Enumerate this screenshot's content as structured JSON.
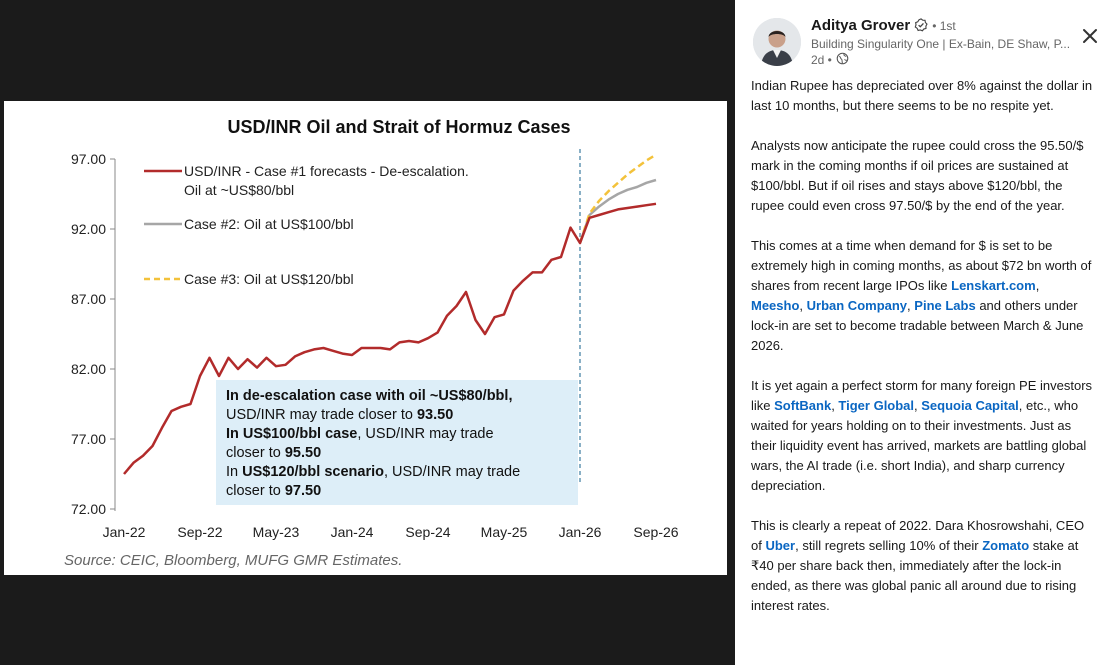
{
  "chart_data": {
    "type": "line",
    "title": "USD/INR Oil and Strait of Hormuz Cases",
    "source": "Source: CEIC, Bloomberg, MUFG GMR Estimates.",
    "x_tick_labels": [
      "Jan-22",
      "Sep-22",
      "May-23",
      "Jan-24",
      "Sep-24",
      "May-25",
      "Jan-26",
      "Sep-26"
    ],
    "y_tick_labels": [
      "97.00",
      "92.00",
      "87.00",
      "82.00",
      "77.00",
      "72.00"
    ],
    "ylim": [
      72,
      97
    ],
    "xlim": [
      0,
      56
    ],
    "forecast_start_x": 48,
    "legend": [
      {
        "label_line1": "USD/INR - Case #1 forecasts - De-escalation.",
        "label_line2": "Oil at ~US$80/bbl",
        "color": "#b22b2b",
        "style": "solid"
      },
      {
        "label_line1": "Case #2: Oil at US$100/bbl",
        "label_line2": "",
        "color": "#a6a6a6",
        "style": "solid"
      },
      {
        "label_line1": "Case #3: Oil at US$120/bbl",
        "label_line2": "",
        "color": "#f3c23b",
        "style": "dashed"
      }
    ],
    "annotation": {
      "line1": "In de-escalation case with oil ~US$80/bbl,",
      "line2_pre": "USD/INR may trade closer to ",
      "line2_val": "93.50",
      "line3_bold": "In US$100/bbl case",
      "line3_rest": ", USD/INR may trade",
      "line4_pre": "closer to ",
      "line4_val": "95.50",
      "line5_pre": "In ",
      "line5_bold": "US$120/bbl scenario",
      "line5_rest": ", USD/INR may trade",
      "line6_pre": "closer to ",
      "line6_val": "97.50"
    },
    "series": [
      {
        "name": "USD/INR - Case #1 forecasts - De-escalation. Oil at ~US$80/bbl",
        "color": "#b22b2b",
        "points": [
          [
            0,
            74.5
          ],
          [
            1,
            75.3
          ],
          [
            2,
            75.8
          ],
          [
            3,
            76.5
          ],
          [
            4,
            77.8
          ],
          [
            5,
            79.0
          ],
          [
            6,
            79.3
          ],
          [
            7,
            79.5
          ],
          [
            8,
            81.5
          ],
          [
            9,
            82.8
          ],
          [
            10,
            81.5
          ],
          [
            11,
            82.8
          ],
          [
            12,
            82.0
          ],
          [
            13,
            82.7
          ],
          [
            14,
            82.1
          ],
          [
            15,
            82.8
          ],
          [
            16,
            82.2
          ],
          [
            17,
            82.3
          ],
          [
            18,
            82.9
          ],
          [
            19,
            83.2
          ],
          [
            20,
            83.4
          ],
          [
            21,
            83.5
          ],
          [
            22,
            83.3
          ],
          [
            23,
            83.1
          ],
          [
            24,
            83.0
          ],
          [
            25,
            83.5
          ],
          [
            26,
            83.5
          ],
          [
            27,
            83.5
          ],
          [
            28,
            83.4
          ],
          [
            29,
            83.9
          ],
          [
            30,
            84.0
          ],
          [
            31,
            83.9
          ],
          [
            32,
            84.2
          ],
          [
            33,
            84.6
          ],
          [
            34,
            85.8
          ],
          [
            35,
            86.5
          ],
          [
            36,
            87.5
          ],
          [
            37,
            85.5
          ],
          [
            38,
            84.5
          ],
          [
            39,
            85.7
          ],
          [
            40,
            85.9
          ],
          [
            41,
            87.6
          ],
          [
            42,
            88.3
          ],
          [
            43,
            88.9
          ],
          [
            44,
            88.9
          ],
          [
            45,
            89.8
          ],
          [
            46,
            90.0
          ],
          [
            47,
            92.1
          ],
          [
            48,
            91.0
          ],
          [
            49,
            92.8
          ],
          [
            50,
            93.0
          ],
          [
            51,
            93.2
          ],
          [
            52,
            93.4
          ],
          [
            53,
            93.5
          ],
          [
            54,
            93.6
          ],
          [
            55,
            93.7
          ],
          [
            56,
            93.8
          ]
        ]
      },
      {
        "name": "Case #2: Oil at US$100/bbl",
        "color": "#a6a6a6",
        "points": [
          [
            48,
            91.0
          ],
          [
            49,
            93.0
          ],
          [
            50,
            93.6
          ],
          [
            51,
            94.1
          ],
          [
            52,
            94.5
          ],
          [
            53,
            94.8
          ],
          [
            54,
            95.0
          ],
          [
            55,
            95.3
          ],
          [
            56,
            95.5
          ]
        ]
      },
      {
        "name": "Case #3: Oil at US$120/bbl",
        "color": "#f3c23b",
        "points": [
          [
            48,
            91.0
          ],
          [
            49,
            93.1
          ],
          [
            50,
            94.0
          ],
          [
            51,
            94.7
          ],
          [
            52,
            95.3
          ],
          [
            53,
            95.9
          ],
          [
            54,
            96.4
          ],
          [
            55,
            96.9
          ],
          [
            56,
            97.3
          ]
        ]
      }
    ]
  },
  "author": {
    "name": "Aditya Grover",
    "degree": "• 1st",
    "headline": "Building Singularity One | Ex-Bain, DE Shaw, P...",
    "age": "2d •"
  },
  "post": {
    "p1": "Indian Rupee has depreciated over 8% against the dollar in last 10 months, but there seems to be no respite yet.",
    "p2": "Analysts now anticipate the rupee could cross the 95.50/$ mark in the coming months if oil prices are sustained at $100/bbl. But if oil rises and stays above $120/bbl, the rupee could even cross 97.50/$ by the end of the year.",
    "p3_a": "This comes at a time when demand for $ is set to be extremely high in coming months, as about $72 bn worth of shares from recent large IPOs like ",
    "link_lenskart": "Lenskart.com",
    "sep_comma": ", ",
    "link_meesho": "Meesho",
    "link_urban": "Urban Company",
    "link_pine": "Pine Labs",
    "p3_b": " and others under lock-in are set to become tradable between March & June 2026.",
    "p4_a": "It is yet again a perfect storm for many foreign PE investors like ",
    "link_softbank": "SoftBank",
    "link_tiger": "Tiger Global",
    "link_sequoia": "Sequoia Capital",
    "p4_b": ", etc., who waited for years holding on to their investments. Just as their liquidity event has arrived, markets are battling global wars, the AI trade (i.e. short India), and sharp currency depreciation.",
    "p5_a": "This is clearly a repeat of 2022. Dara Khosrowshahi, CEO of ",
    "link_uber": "Uber",
    "p5_b": ", still regrets selling 10% of their ",
    "link_zomato": "Zomato",
    "p5_c": " stake at ₹40 per share back then, immediately after the lock-in ended, as there was global panic all around due to rising interest rates."
  }
}
